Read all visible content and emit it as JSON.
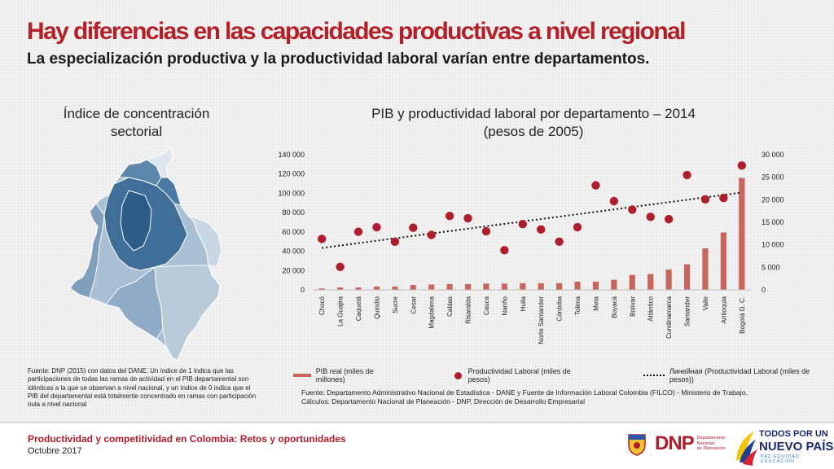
{
  "header": {
    "title": "Hay diferencias en las capacidades productivas a nivel regional",
    "subtitle": "La especialización productiva y la productividad laboral varían entre departamentos."
  },
  "map": {
    "title_line1": "Índice de concentración",
    "title_line2": "sectorial",
    "note": "Fuente: DNP (2015) con datos del DANE. Un índice de 1 indica que las participaciones de todas las ramas de actividad en el PIB departamental son idénticas a la que se observan a nivel nacional, y un índice de 0 indica que el PIB del departamental está totalmente concentrado en ramas con participación nula a nivel nacional"
  },
  "chart_data": {
    "type": "bar",
    "title_line1": "PIB y productividad laboral por departamento – 2014",
    "title_line2": "(pesos de 2005)",
    "categories": [
      "Chocó",
      "La Guajira",
      "Caquetá",
      "Quindío",
      "Sucre",
      "Cesar",
      "Magdalena",
      "Caldas",
      "Risaralda",
      "Cauca",
      "Nariño",
      "Huila",
      "Norte Santander",
      "Córdoba",
      "Tolima",
      "Meta",
      "Boyacá",
      "Bolívar",
      "Atlántico",
      "Cundinamarca",
      "Santander",
      "Valle",
      "Antioquia",
      "Bogotá D. C."
    ],
    "y_left_ticks": [
      "0",
      "20 000",
      "40 000",
      "60 000",
      "80 000",
      "100 000",
      "120 000",
      "140 000"
    ],
    "y_right_ticks": [
      "0",
      "5 000",
      "10 000",
      "15 000",
      "20 000",
      "25 000",
      "30 000"
    ],
    "ylim_left": [
      0,
      140000
    ],
    "ylim_right": [
      0,
      30000
    ],
    "series": [
      {
        "name": "PIB real (miles de millones)",
        "kind": "bar",
        "axis": "left",
        "color": "#c9655c",
        "values": [
          1500,
          2500,
          2500,
          3500,
          3500,
          5000,
          5500,
          6000,
          6000,
          6500,
          6500,
          7000,
          7000,
          7000,
          8500,
          8500,
          10500,
          15500,
          16500,
          21000,
          26500,
          43000,
          59500,
          116000
        ]
      },
      {
        "name": "Productividad Laboral (miles de pesos)",
        "kind": "scatter",
        "axis": "right",
        "color": "#b01e2e",
        "values": [
          11300,
          5100,
          12900,
          13900,
          10700,
          13800,
          12200,
          16400,
          15900,
          13000,
          8800,
          14600,
          13400,
          10700,
          13900,
          23200,
          19700,
          17800,
          16200,
          15700,
          25500,
          20100,
          20400,
          27600
        ]
      }
    ],
    "trendline": {
      "name": "Линейная (Productividad Laboral (miles de pesos))",
      "color": "#111111",
      "start": 9300,
      "end": 21600
    },
    "source": "Fuente: Departamento Administrativo Nacional de Estadística - DANE y Fuente de Información Laboral Colombia (FILCO) - Ministerio de Trabajo.",
    "calc": "Cálculos: Departamento Nacional de Planeación - DNP, Dirección de Desarrollo Empresarial"
  },
  "footer": {
    "title": "Productividad y competitividad en Colombia: Retos y oportunidades",
    "date": "Octubre 2017",
    "dnp_logo": "DNP",
    "dnp_sub1": "Departamento",
    "dnp_sub2": "Nacional",
    "dnp_sub3": "de Planeación",
    "gov_line1": "TODOS POR UN",
    "gov_line2": "NUEVO PAÍS",
    "gov_line3": "PAZ  EQUIDAD  EDUCACIÓN"
  }
}
